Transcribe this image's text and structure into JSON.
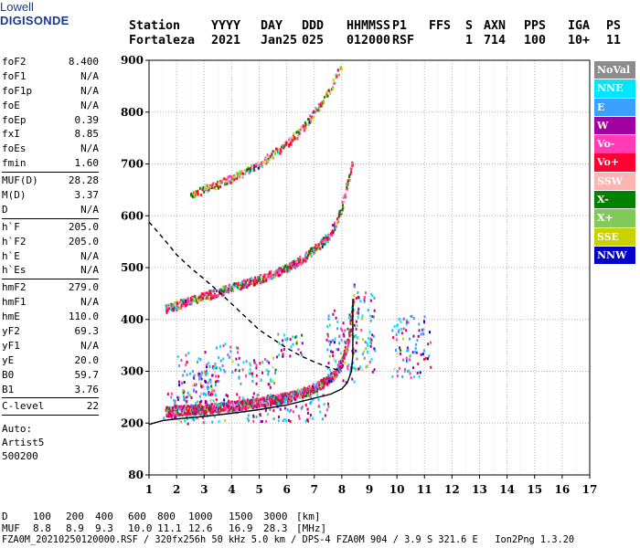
{
  "logo": {
    "line1": "Lowell",
    "line2": "DIGISONDE"
  },
  "header": {
    "labels": [
      "Station",
      "YYYY",
      "DAY",
      "DDD",
      "HHMMSS",
      "P1",
      "FFS",
      "S",
      "AXN",
      "PPS",
      "IGA",
      "PS"
    ],
    "values": [
      "Fortaleza",
      "2021",
      "Jan25",
      "025",
      "012000",
      "RSF",
      "",
      "1",
      "714",
      "100",
      "10+",
      "11"
    ]
  },
  "parameters": [
    {
      "group": [
        {
          "name": "foF2",
          "value": "8.400"
        },
        {
          "name": "foF1",
          "value": "N/A"
        },
        {
          "name": "foF1p",
          "value": "N/A"
        },
        {
          "name": "foE",
          "value": "N/A"
        },
        {
          "name": "foEp",
          "value": "0.39"
        },
        {
          "name": "fxI",
          "value": "8.85"
        },
        {
          "name": "foEs",
          "value": "N/A"
        },
        {
          "name": "fmin",
          "value": "1.60"
        }
      ]
    },
    {
      "group": [
        {
          "name": "MUF(D)",
          "value": "28.28"
        },
        {
          "name": "M(D)",
          "value": "3.37"
        },
        {
          "name": "D",
          "value": "N/A"
        }
      ]
    },
    {
      "group": [
        {
          "name": "h`F",
          "value": "205.0"
        },
        {
          "name": "h`F2",
          "value": "205.0"
        },
        {
          "name": "h`E",
          "value": "N/A"
        },
        {
          "name": "h`Es",
          "value": "N/A"
        }
      ]
    },
    {
      "group": [
        {
          "name": "hmF2",
          "value": "279.0"
        },
        {
          "name": "hmF1",
          "value": "N/A"
        },
        {
          "name": "hmE",
          "value": "110.0"
        },
        {
          "name": "yF2",
          "value": "69.3"
        },
        {
          "name": "yF1",
          "value": "N/A"
        },
        {
          "name": "yE",
          "value": "20.0"
        },
        {
          "name": "B0",
          "value": "59.7"
        },
        {
          "name": "B1",
          "value": "3.76"
        }
      ]
    },
    {
      "group": [
        {
          "name": "C-level",
          "value": "22"
        }
      ]
    }
  ],
  "autoscaling": [
    "Auto:",
    "Artist5",
    "500200"
  ],
  "legend": [
    {
      "label": "NoVal",
      "color": "#8c8c8c"
    },
    {
      "label": "NNE",
      "color": "#00e6ff"
    },
    {
      "label": "E",
      "color": "#3ca0ff"
    },
    {
      "label": "W",
      "color": "#a000a0"
    },
    {
      "label": "Vo-",
      "color": "#ff3cb4"
    },
    {
      "label": "Vo+",
      "color": "#ff0032"
    },
    {
      "label": "SSW",
      "color": "#ffb4b4"
    },
    {
      "label": "X-",
      "color": "#008200"
    },
    {
      "label": "X+",
      "color": "#82c85a"
    },
    {
      "label": "SSE",
      "color": "#c8d200"
    },
    {
      "label": "NNW",
      "color": "#0000c8"
    }
  ],
  "footer": {
    "d_label": "D",
    "d_values": [
      "100",
      "200",
      "400",
      "600",
      "800",
      "1000",
      "1500",
      "3000"
    ],
    "d_unit": "[km]",
    "muf_label": "MUF",
    "muf_values": [
      "8.8",
      "8.9",
      "9.3",
      "10.0",
      "11.1",
      "12.6",
      "16.9",
      "28.3"
    ],
    "muf_unit": "[MHz]",
    "file_line": "FZA0M_20210250120000.RSF / 320fx256h 50 kHz 5.0 km / DPS-4 FZA0M 904 / 3.9 S 321.6 E   Ion2Png 1.3.20"
  },
  "chart_data": {
    "type": "scatter",
    "x_ticks": [
      1,
      2,
      3,
      4,
      5,
      6,
      7,
      8,
      9,
      10,
      11,
      12,
      13,
      14,
      15,
      16,
      17
    ],
    "y_ticks": [
      80,
      200,
      300,
      400,
      500,
      600,
      700,
      800,
      900
    ],
    "xlim": [
      1,
      17
    ],
    "y_axis_breakpoints": [
      [
        80,
        0
      ],
      [
        200,
        1
      ],
      [
        900,
        8
      ]
    ],
    "grid": true,
    "trace_f_layer": [
      [
        1.6,
        222
      ],
      [
        2,
        224
      ],
      [
        3,
        228
      ],
      [
        4,
        233
      ],
      [
        5,
        240
      ],
      [
        6,
        250
      ],
      [
        6.5,
        258
      ],
      [
        7,
        268
      ],
      [
        7.5,
        285
      ],
      [
        7.8,
        300
      ],
      [
        8.0,
        320
      ],
      [
        8.2,
        355
      ],
      [
        8.3,
        390
      ],
      [
        8.4,
        430
      ],
      [
        8.45,
        470
      ]
    ],
    "trace_second_hop": [
      [
        1.6,
        420
      ],
      [
        2,
        428
      ],
      [
        3,
        445
      ],
      [
        4,
        462
      ],
      [
        5,
        478
      ],
      [
        6,
        500
      ],
      [
        6.5,
        515
      ],
      [
        7,
        535
      ],
      [
        7.5,
        560
      ],
      [
        7.8,
        590
      ],
      [
        8.0,
        620
      ],
      [
        8.2,
        665
      ],
      [
        8.35,
        700
      ]
    ],
    "trace_third_hop": [
      [
        2.5,
        640
      ],
      [
        3,
        652
      ],
      [
        4,
        672
      ],
      [
        5,
        700
      ],
      [
        6,
        740
      ],
      [
        6.5,
        765
      ],
      [
        7,
        800
      ],
      [
        7.5,
        840
      ],
      [
        7.8,
        870
      ],
      [
        8.0,
        895
      ]
    ],
    "spread_echoes": [
      [
        1.9,
        340,
        3.3,
        200
      ],
      [
        3.3,
        360,
        4.2,
        300
      ],
      [
        4.2,
        330,
        5.6,
        270
      ],
      [
        2.5,
        300,
        3.5,
        230
      ],
      [
        5.6,
        380,
        6.6,
        330
      ],
      [
        7.4,
        420,
        8.6,
        280
      ],
      [
        8.3,
        460,
        9.2,
        300
      ],
      [
        9.8,
        410,
        11.2,
        290
      ],
      [
        1.5,
        260,
        7.5,
        205
      ]
    ],
    "profile_curve": [
      [
        1.0,
        197
      ],
      [
        1.5,
        205
      ],
      [
        2,
        208
      ],
      [
        3,
        213
      ],
      [
        4,
        219
      ],
      [
        5,
        226
      ],
      [
        6,
        235
      ],
      [
        7,
        248
      ],
      [
        7.6,
        256
      ],
      [
        8.0,
        266
      ],
      [
        8.2,
        278
      ],
      [
        8.35,
        300
      ],
      [
        8.4,
        330
      ],
      [
        8.4,
        440
      ]
    ],
    "mufd_curve": [
      [
        1.0,
        588
      ],
      [
        1.3,
        570
      ],
      [
        1.7,
        545
      ],
      [
        2,
        525
      ],
      [
        2.5,
        500
      ],
      [
        3,
        478
      ],
      [
        3.5,
        455
      ],
      [
        4,
        430
      ],
      [
        4.5,
        405
      ],
      [
        5,
        380
      ],
      [
        5.5,
        362
      ],
      [
        6,
        345
      ],
      [
        6.5,
        330
      ],
      [
        7,
        318
      ],
      [
        7.5,
        308
      ],
      [
        8,
        300
      ]
    ]
  }
}
